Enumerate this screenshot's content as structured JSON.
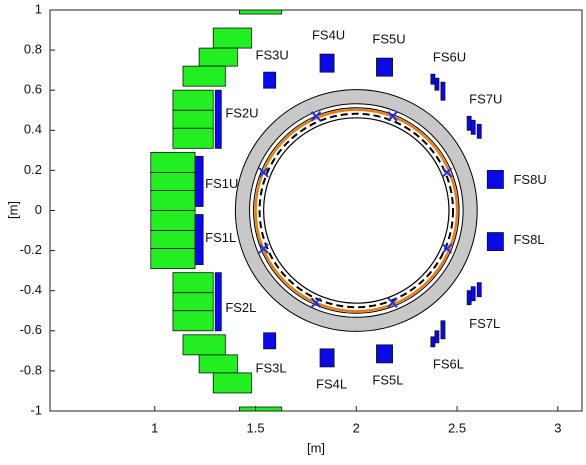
{
  "chart_data": {
    "type": "coil-layout",
    "xlabel": "[m]",
    "ylabel": "[m]",
    "xlim": [
      0.48,
      3.12
    ],
    "ylim": [
      -1,
      1
    ],
    "xticks": [
      1,
      1.5,
      2,
      2.5,
      3
    ],
    "yticks": [
      -1,
      -0.8,
      -0.6,
      -0.4,
      -0.2,
      0,
      0.2,
      0.4,
      0.6,
      0.8,
      1
    ],
    "coils": [
      {
        "color": "#22ee22",
        "boxes": [
          [
            1.42,
            1.63,
            0.98,
            1.0
          ],
          [
            1.29,
            1.48,
            0.81,
            0.91
          ],
          [
            1.22,
            1.41,
            0.72,
            0.81
          ],
          [
            1.14,
            1.35,
            0.62,
            0.72
          ],
          [
            1.09,
            1.29,
            0.5,
            0.6
          ],
          [
            1.09,
            1.29,
            0.41,
            0.5
          ],
          [
            1.09,
            1.29,
            0.31,
            0.41
          ],
          [
            0.98,
            1.2,
            0.19,
            0.29
          ],
          [
            0.98,
            1.2,
            0.1,
            0.19
          ],
          [
            0.98,
            1.2,
            0.0,
            0.1
          ],
          [
            0.98,
            1.2,
            -0.1,
            0.0
          ],
          [
            0.98,
            1.2,
            -0.19,
            -0.1
          ],
          [
            0.98,
            1.2,
            -0.29,
            -0.19
          ],
          [
            1.09,
            1.29,
            -0.41,
            -0.31
          ],
          [
            1.09,
            1.29,
            -0.5,
            -0.41
          ],
          [
            1.09,
            1.29,
            -0.6,
            -0.5
          ],
          [
            1.14,
            1.35,
            -0.72,
            -0.62
          ],
          [
            1.22,
            1.41,
            -0.81,
            -0.72
          ],
          [
            1.29,
            1.48,
            -0.91,
            -0.81
          ],
          [
            1.42,
            1.63,
            -1.0,
            -0.98
          ]
        ]
      },
      {
        "color": "#0a0ae6",
        "boxes": [
          [
            1.3,
            1.33,
            0.31,
            0.6
          ],
          [
            1.2,
            1.24,
            0.02,
            0.27
          ],
          [
            1.2,
            1.24,
            -0.27,
            -0.02
          ],
          [
            1.3,
            1.33,
            -0.6,
            -0.31
          ],
          [
            1.54,
            1.6,
            0.61,
            0.69
          ],
          [
            1.82,
            1.89,
            0.69,
            0.78
          ],
          [
            2.1,
            2.18,
            0.67,
            0.76
          ],
          [
            2.37,
            2.39,
            0.63,
            0.68
          ],
          [
            2.39,
            2.41,
            0.6,
            0.66
          ],
          [
            2.42,
            2.44,
            0.55,
            0.64
          ],
          [
            2.55,
            2.57,
            0.4,
            0.47
          ],
          [
            2.57,
            2.59,
            0.38,
            0.45
          ],
          [
            2.6,
            2.62,
            0.36,
            0.43
          ],
          [
            2.65,
            2.73,
            0.11,
            0.2
          ],
          [
            2.65,
            2.73,
            -0.2,
            -0.11
          ],
          [
            2.6,
            2.62,
            -0.43,
            -0.36
          ],
          [
            2.57,
            2.59,
            -0.45,
            -0.38
          ],
          [
            2.55,
            2.57,
            -0.47,
            -0.4
          ],
          [
            2.42,
            2.44,
            -0.64,
            -0.55
          ],
          [
            2.39,
            2.41,
            -0.66,
            -0.6
          ],
          [
            2.37,
            2.39,
            -0.68,
            -0.63
          ],
          [
            2.1,
            2.18,
            -0.76,
            -0.67
          ],
          [
            1.82,
            1.89,
            -0.78,
            -0.69
          ],
          [
            1.54,
            1.6,
            -0.69,
            -0.61
          ]
        ]
      }
    ],
    "rings": [
      {
        "cx": 2,
        "cy": 0,
        "r": 0.6,
        "color": "#000000",
        "fill": "#c8c8c8",
        "width": 1
      },
      {
        "cx": 2,
        "cy": 0,
        "r": 0.53,
        "color": "#000000",
        "fill": "#ffffff",
        "width": 1
      },
      {
        "cx": 2,
        "cy": 0,
        "r": 0.51,
        "color": "#000000",
        "fill": "none",
        "width": 1
      },
      {
        "cx": 2,
        "cy": 0,
        "r": 0.5,
        "color": "#e87d10",
        "fill": "none",
        "width": 2.5
      },
      {
        "cx": 2,
        "cy": 0,
        "r": 0.48,
        "color": "#000000",
        "fill": "none",
        "width": 2,
        "dash": true
      },
      {
        "cx": 2,
        "cy": 0,
        "r": 0.46,
        "color": "#000000",
        "fill": "none",
        "width": 1.2
      }
    ],
    "markers": {
      "color": "#2030e0",
      "x": [
        1.8,
        2.18,
        2.45,
        2.45,
        2.18,
        1.8,
        1.54,
        1.54
      ],
      "y": [
        0.47,
        0.47,
        0.19,
        -0.19,
        -0.46,
        -0.46,
        -0.19,
        0.19
      ]
    },
    "annotations": [
      {
        "text": "FS1U",
        "x": 1.25,
        "y": 0.13
      },
      {
        "text": "FS2U",
        "x": 1.35,
        "y": 0.48
      },
      {
        "text": "FS3U",
        "x": 1.5,
        "y": 0.77
      },
      {
        "text": "FS4U",
        "x": 1.78,
        "y": 0.87
      },
      {
        "text": "FS5U",
        "x": 2.08,
        "y": 0.85
      },
      {
        "text": "FS6U",
        "x": 2.38,
        "y": 0.76
      },
      {
        "text": "FS7U",
        "x": 2.56,
        "y": 0.55
      },
      {
        "text": "FS8U",
        "x": 2.78,
        "y": 0.15
      },
      {
        "text": "FS1L",
        "x": 1.25,
        "y": -0.14
      },
      {
        "text": "FS2L",
        "x": 1.35,
        "y": -0.49
      },
      {
        "text": "FS3L",
        "x": 1.5,
        "y": -0.79
      },
      {
        "text": "FS4L",
        "x": 1.8,
        "y": -0.87
      },
      {
        "text": "FS5L",
        "x": 2.08,
        "y": -0.85
      },
      {
        "text": "FS6L",
        "x": 2.38,
        "y": -0.77
      },
      {
        "text": "FS7L",
        "x": 2.56,
        "y": -0.57
      },
      {
        "text": "FS8L",
        "x": 2.78,
        "y": -0.15
      }
    ]
  }
}
